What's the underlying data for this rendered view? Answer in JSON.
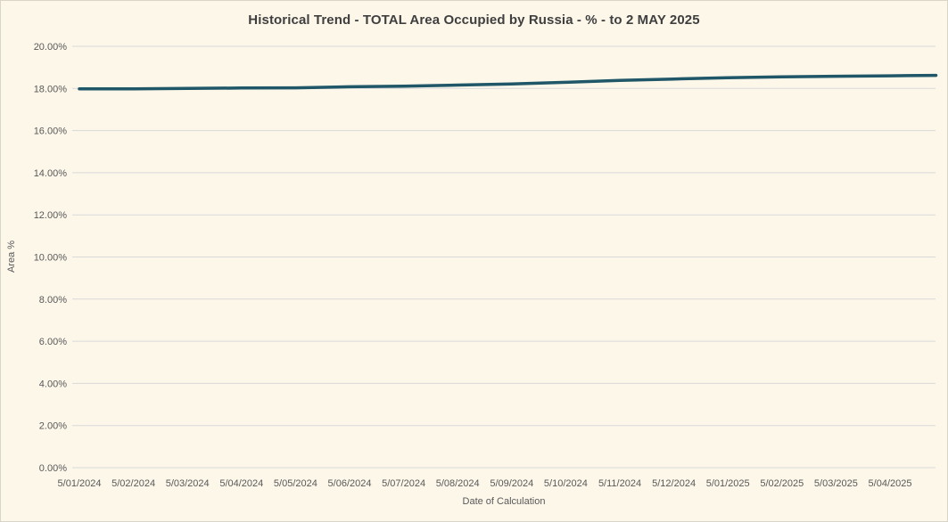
{
  "title": "Historical Trend - TOTAL Area Occupied by Russia - % - to 2 MAY 2025",
  "style": {
    "background": "#fdf7ea",
    "border": "#d9d5c9",
    "grid": "#d9d9d9",
    "tick_text": "#595959",
    "title_text": "#3f3f3f",
    "line": "#1f5668"
  },
  "chart_data": {
    "type": "line",
    "title": "Historical Trend - TOTAL Area Occupied by Russia - % - to 2 MAY 2025",
    "xlabel": "Date of Calculation",
    "ylabel": "Area %",
    "ylim": [
      0,
      20
    ],
    "ytick_step": 2,
    "ytick_suffix": "%",
    "ytick_decimals": 2,
    "grid": true,
    "legend_position": "none",
    "categories": [
      "5/01/2024",
      "5/02/2024",
      "5/03/2024",
      "5/04/2024",
      "5/05/2024",
      "5/06/2024",
      "5/07/2024",
      "5/08/2024",
      "5/09/2024",
      "5/10/2024",
      "5/11/2024",
      "5/12/2024",
      "5/01/2025",
      "5/02/2025",
      "5/03/2025",
      "5/04/2025"
    ],
    "series": [
      {
        "name": "TOTAL Area Occupied by Russia %",
        "color": "#1f5668",
        "points": [
          {
            "x": 0,
            "y": 17.98
          },
          {
            "x": 1,
            "y": 17.98
          },
          {
            "x": 2,
            "y": 18.0
          },
          {
            "x": 3,
            "y": 18.02
          },
          {
            "x": 4,
            "y": 18.03
          },
          {
            "x": 5,
            "y": 18.08
          },
          {
            "x": 6,
            "y": 18.11
          },
          {
            "x": 7,
            "y": 18.16
          },
          {
            "x": 8,
            "y": 18.21
          },
          {
            "x": 9,
            "y": 18.29
          },
          {
            "x": 10,
            "y": 18.38
          },
          {
            "x": 11,
            "y": 18.45
          },
          {
            "x": 12,
            "y": 18.51
          },
          {
            "x": 13,
            "y": 18.55
          },
          {
            "x": 14,
            "y": 18.58
          },
          {
            "x": 15,
            "y": 18.6
          },
          {
            "x": 15.85,
            "y": 18.62
          }
        ]
      }
    ]
  }
}
